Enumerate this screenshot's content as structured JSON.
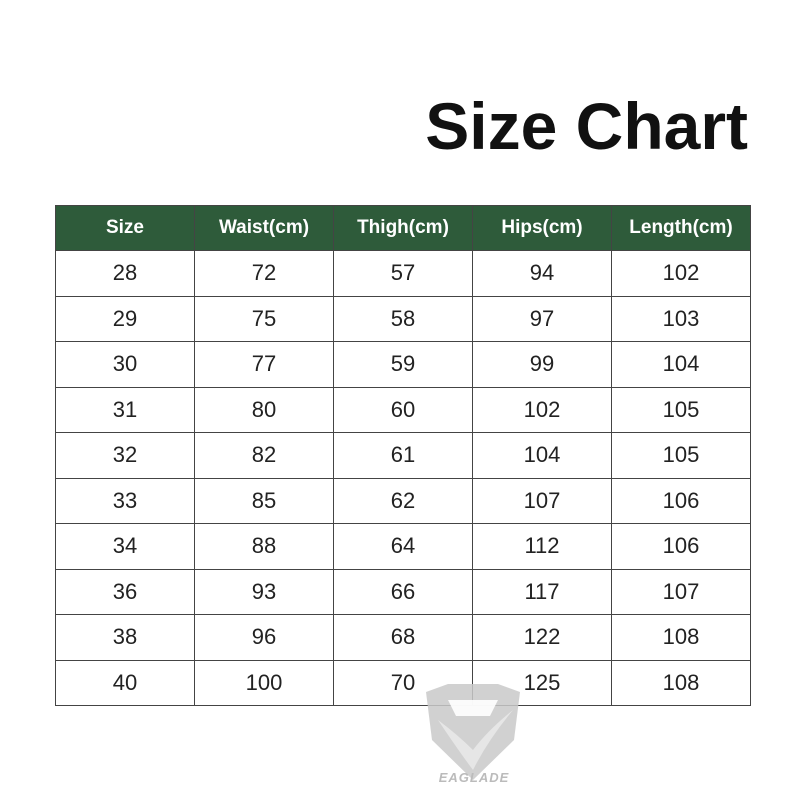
{
  "title": "Size Chart",
  "colors": {
    "header_bg": "#2e5b3a",
    "header_text": "#ffffff"
  },
  "table": {
    "headers": [
      "Size",
      "Waist(cm)",
      "Thigh(cm)",
      "Hips(cm)",
      "Length(cm)"
    ],
    "rows": [
      [
        "28",
        "72",
        "57",
        "94",
        "102"
      ],
      [
        "29",
        "75",
        "58",
        "97",
        "103"
      ],
      [
        "30",
        "77",
        "59",
        "99",
        "104"
      ],
      [
        "31",
        "80",
        "60",
        "102",
        "105"
      ],
      [
        "32",
        "82",
        "61",
        "104",
        "105"
      ],
      [
        "33",
        "85",
        "62",
        "107",
        "106"
      ],
      [
        "34",
        "88",
        "64",
        "112",
        "106"
      ],
      [
        "36",
        "93",
        "66",
        "117",
        "107"
      ],
      [
        "38",
        "96",
        "68",
        "122",
        "108"
      ],
      [
        "40",
        "100",
        "70",
        "125",
        "108"
      ]
    ]
  },
  "watermark": {
    "brand": "EAGLADE",
    "icon": "eagle-shield-logo"
  }
}
